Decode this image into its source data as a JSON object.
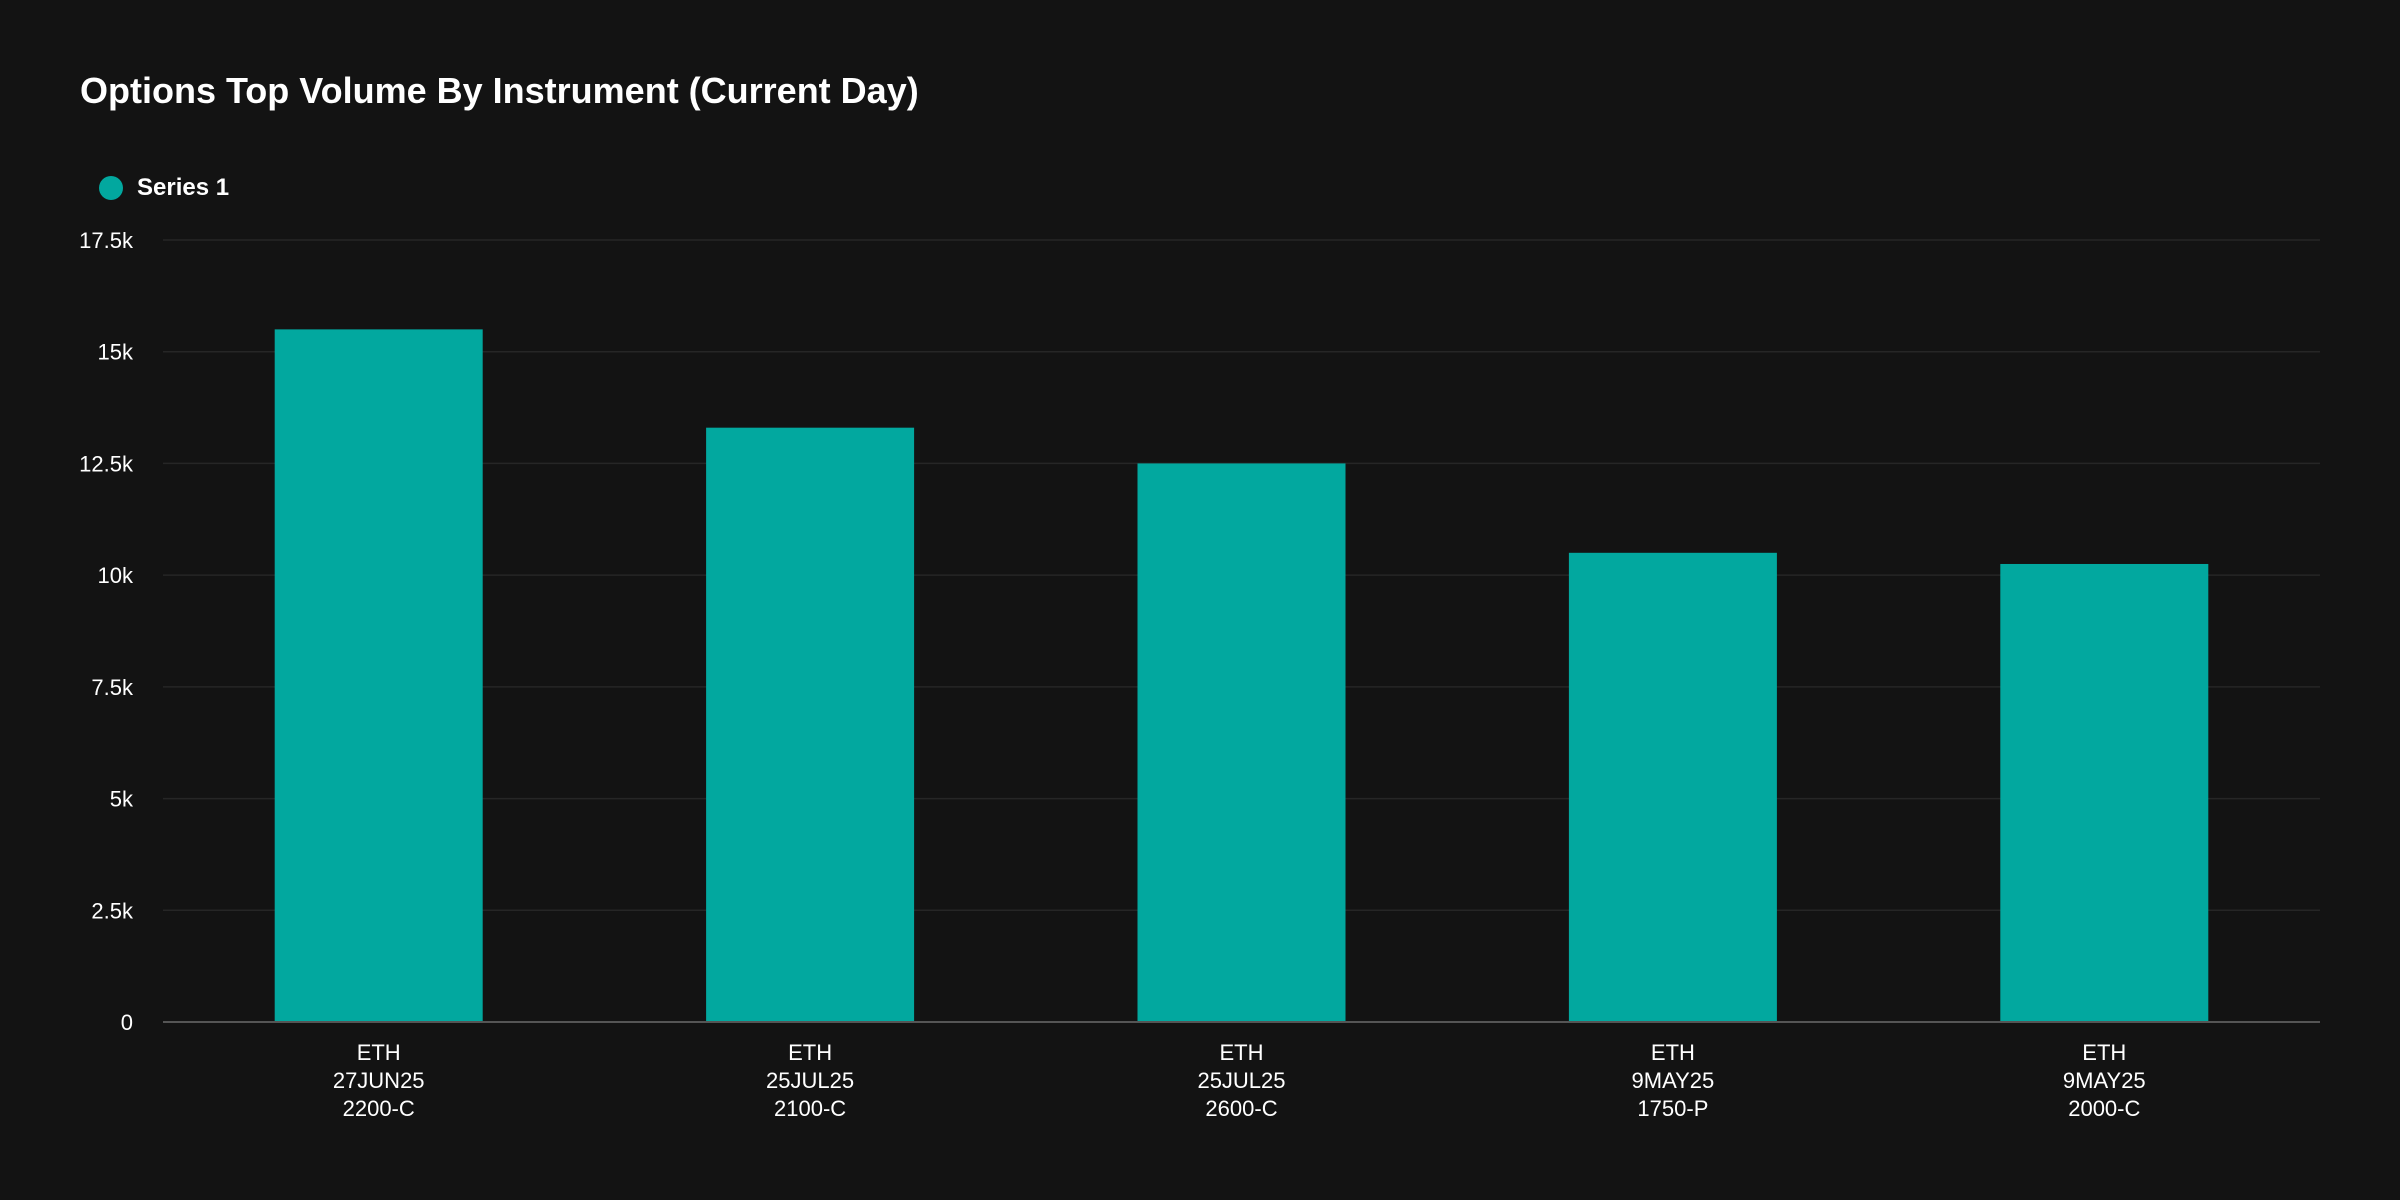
{
  "title": "Options Top Volume By Instrument (Current Day)",
  "colors": {
    "background": "#131313",
    "bar": "#02A89F",
    "grid": "#262626",
    "axis": "#555555",
    "text": "#ffffff"
  },
  "chart_data": {
    "type": "bar",
    "title": "Options Top Volume By Instrument (Current Day)",
    "xlabel": "",
    "ylabel": "",
    "categories": [
      [
        "ETH",
        "27JUN25",
        "2200-C"
      ],
      [
        "ETH",
        "25JUL25",
        "2100-C"
      ],
      [
        "ETH",
        "25JUL25",
        "2600-C"
      ],
      [
        "ETH",
        "9MAY25",
        "1750-P"
      ],
      [
        "ETH",
        "9MAY25",
        "2000-C"
      ]
    ],
    "series": [
      {
        "name": "Series 1",
        "values": [
          15500,
          13300,
          12500,
          10500,
          10250
        ]
      }
    ],
    "ylim": [
      0,
      17500
    ],
    "yticks": [
      0,
      2500,
      5000,
      7500,
      10000,
      12500,
      15000,
      17500
    ],
    "ytick_labels": [
      "0",
      "2.5k",
      "5k",
      "7.5k",
      "10k",
      "12.5k",
      "15k",
      "17.5k"
    ],
    "grid": true,
    "legend_position": "top-left"
  }
}
